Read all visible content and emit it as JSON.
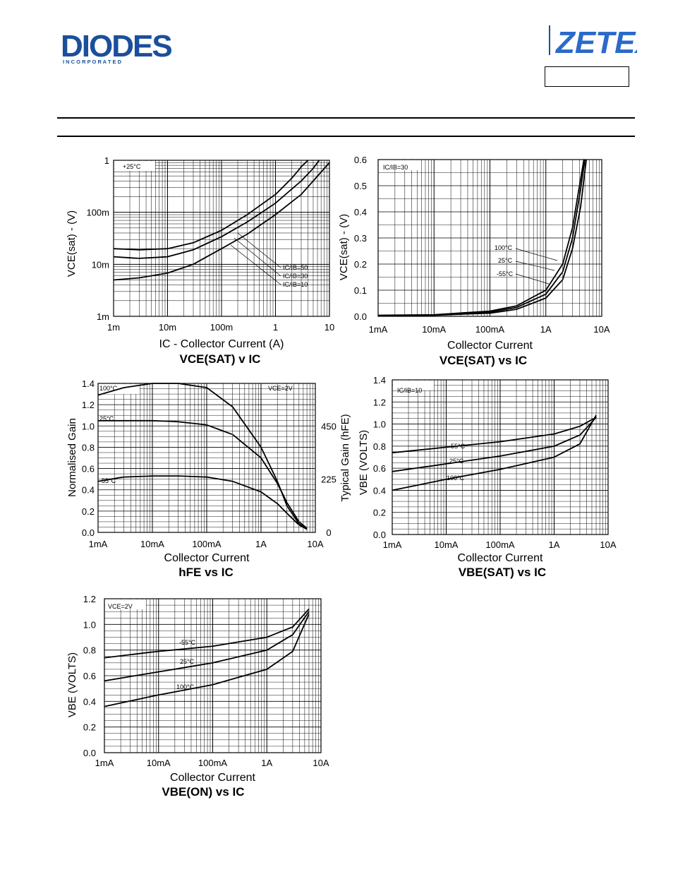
{
  "header": {
    "brand_left": "DIODES",
    "brand_left_sub": "I N C O R P O R A T E D",
    "brand_right": "ZETEX",
    "part_number": ""
  },
  "chart_data": [
    {
      "id": "c1",
      "type": "line",
      "title": "VCE(SAT) v IC",
      "xlabel": "IC - Collector Current (A)",
      "ylabel": "VCE(sat) - (V)",
      "xscale": "log",
      "yscale": "log",
      "xlim": [
        0.001,
        10
      ],
      "ylim": [
        0.001,
        1
      ],
      "x_tick_labels": [
        "1m",
        "10m",
        "100m",
        "1",
        "10"
      ],
      "y_tick_labels": [
        "1",
        "100m",
        "10m",
        "1m"
      ],
      "annotations": [
        "+25°C",
        "IC/IB=50",
        "IC/IB=30",
        "IC/IB=10"
      ],
      "series": [
        {
          "name": "IC/IB=50",
          "x": [
            0.001,
            0.003,
            0.01,
            0.03,
            0.1,
            0.3,
            1,
            2,
            3,
            4
          ],
          "y": [
            0.02,
            0.019,
            0.02,
            0.026,
            0.045,
            0.09,
            0.22,
            0.45,
            0.75,
            1.0
          ]
        },
        {
          "name": "IC/IB=30",
          "x": [
            0.001,
            0.003,
            0.01,
            0.03,
            0.1,
            0.3,
            1,
            3,
            5,
            6.5
          ],
          "y": [
            0.014,
            0.013,
            0.014,
            0.019,
            0.034,
            0.065,
            0.15,
            0.4,
            0.7,
            1.0
          ]
        },
        {
          "name": "IC/IB=10",
          "x": [
            0.001,
            0.003,
            0.01,
            0.03,
            0.1,
            0.3,
            1,
            3,
            10
          ],
          "y": [
            0.005,
            0.0055,
            0.0068,
            0.01,
            0.02,
            0.038,
            0.09,
            0.22,
            0.9
          ]
        }
      ]
    },
    {
      "id": "c2",
      "type": "line",
      "title": "VCE(SAT) vs IC",
      "xlabel": "Collector Current",
      "ylabel": "VCE(sat) - (V)",
      "xscale": "log",
      "yscale": "linear",
      "xlim": [
        0.001,
        10
      ],
      "ylim": [
        0,
        0.6
      ],
      "x_tick_labels": [
        "1mA",
        "10mA",
        "100mA",
        "1A",
        "10A"
      ],
      "y_tick_labels": [
        "0.6",
        "0.5",
        "0.4",
        "0.3",
        "0.2",
        "0.1",
        "0.0"
      ],
      "annotations": [
        "IC/IB=30",
        "100°C",
        "25°C",
        "-55°C"
      ],
      "series": [
        {
          "name": "100°C",
          "x": [
            0.001,
            0.01,
            0.1,
            0.3,
            1,
            2,
            3,
            4,
            4.8
          ],
          "y": [
            0.004,
            0.006,
            0.02,
            0.04,
            0.1,
            0.2,
            0.34,
            0.5,
            0.6
          ]
        },
        {
          "name": "25°C",
          "x": [
            0.001,
            0.01,
            0.1,
            0.3,
            1,
            2,
            3,
            4,
            5
          ],
          "y": [
            0.003,
            0.005,
            0.016,
            0.034,
            0.085,
            0.17,
            0.3,
            0.46,
            0.6
          ]
        },
        {
          "name": "-55°C",
          "x": [
            0.001,
            0.01,
            0.1,
            0.3,
            1,
            2,
            3,
            4.2,
            5.3
          ],
          "y": [
            0.002,
            0.004,
            0.012,
            0.027,
            0.07,
            0.14,
            0.26,
            0.42,
            0.6
          ]
        }
      ]
    },
    {
      "id": "c3",
      "type": "line",
      "title": "hFE vs IC",
      "xlabel": "Collector Current",
      "ylabel": "Normalised Gain",
      "ylabel_right": "Typical Gain (hFE)",
      "xscale": "log",
      "yscale": "linear",
      "xlim": [
        0.001,
        10
      ],
      "ylim": [
        0,
        1.4
      ],
      "x_tick_labels": [
        "1mA",
        "10mA",
        "100mA",
        "1A",
        "10A"
      ],
      "y_tick_labels": [
        "1.4",
        "1.2",
        "1.0",
        "0.8",
        "0.6",
        "0.4",
        "0.2",
        "0.0"
      ],
      "y_right_tick_labels": [
        "450",
        "225",
        "0"
      ],
      "annotations": [
        "VCE=2V",
        "100°C",
        "25°C",
        "-55°C"
      ],
      "series": [
        {
          "name": "100°C",
          "x": [
            0.001,
            0.003,
            0.01,
            0.03,
            0.1,
            0.3,
            1,
            2,
            3,
            5,
            7
          ],
          "y": [
            1.29,
            1.36,
            1.4,
            1.4,
            1.36,
            1.18,
            0.8,
            0.48,
            0.25,
            0.08,
            0.03
          ]
        },
        {
          "name": "25°C",
          "x": [
            0.001,
            0.01,
            0.03,
            0.1,
            0.3,
            1,
            2,
            3,
            5,
            7
          ],
          "y": [
            1.05,
            1.05,
            1.04,
            1.01,
            0.92,
            0.7,
            0.46,
            0.28,
            0.1,
            0.04
          ]
        },
        {
          "name": "-55°C",
          "x": [
            0.001,
            0.003,
            0.01,
            0.03,
            0.1,
            0.3,
            1,
            2,
            3,
            5,
            7
          ],
          "y": [
            0.48,
            0.52,
            0.53,
            0.53,
            0.52,
            0.48,
            0.38,
            0.27,
            0.18,
            0.07,
            0.03
          ]
        }
      ]
    },
    {
      "id": "c4",
      "type": "line",
      "title": "VBE(SAT) vs IC",
      "xlabel": "Collector Current",
      "ylabel": "VBE (VOLTS)",
      "xscale": "log",
      "yscale": "linear",
      "xlim": [
        0.001,
        10
      ],
      "ylim": [
        0,
        1.4
      ],
      "x_tick_labels": [
        "1mA",
        "10mA",
        "100mA",
        "1A",
        "10A"
      ],
      "y_tick_labels": [
        "1.4",
        "1.2",
        "1.0",
        "0.8",
        "0.6",
        "0.4",
        "0.2",
        "0.0"
      ],
      "annotations": [
        "IC/IB=10",
        "-55°C",
        "25°C",
        "100°C"
      ],
      "series": [
        {
          "name": "-55°C",
          "x": [
            0.001,
            0.01,
            0.1,
            1,
            3,
            6
          ],
          "y": [
            0.74,
            0.79,
            0.84,
            0.91,
            0.98,
            1.06
          ]
        },
        {
          "name": "25°C",
          "x": [
            0.001,
            0.01,
            0.1,
            1,
            3,
            6
          ],
          "y": [
            0.57,
            0.64,
            0.71,
            0.8,
            0.9,
            1.06
          ]
        },
        {
          "name": "100°C",
          "x": [
            0.001,
            0.01,
            0.1,
            1,
            3,
            6
          ],
          "y": [
            0.4,
            0.5,
            0.59,
            0.7,
            0.82,
            1.08
          ]
        }
      ]
    },
    {
      "id": "c5",
      "type": "line",
      "title": "VBE(ON) vs IC",
      "xlabel": "Collector Current",
      "ylabel": "VBE (VOLTS)",
      "xscale": "log",
      "yscale": "linear",
      "xlim": [
        0.001,
        10
      ],
      "ylim": [
        0,
        1.2
      ],
      "x_tick_labels": [
        "1mA",
        "10mA",
        "100mA",
        "1A",
        "10A"
      ],
      "y_tick_labels": [
        "1.2",
        "1.0",
        "0.8",
        "0.6",
        "0.4",
        "0.2",
        "0.0"
      ],
      "annotations": [
        "VCE=2V",
        "-55°C",
        "25°C",
        "100°C"
      ],
      "series": [
        {
          "name": "-55°C",
          "x": [
            0.001,
            0.01,
            0.1,
            1,
            3,
            6
          ],
          "y": [
            0.74,
            0.79,
            0.83,
            0.9,
            0.98,
            1.12
          ]
        },
        {
          "name": "25°C",
          "x": [
            0.001,
            0.01,
            0.1,
            1,
            3,
            6
          ],
          "y": [
            0.56,
            0.63,
            0.7,
            0.8,
            0.92,
            1.1
          ]
        },
        {
          "name": "100°C",
          "x": [
            0.001,
            0.01,
            0.1,
            1,
            3,
            6
          ],
          "y": [
            0.36,
            0.45,
            0.53,
            0.65,
            0.79,
            1.08
          ]
        }
      ]
    }
  ]
}
